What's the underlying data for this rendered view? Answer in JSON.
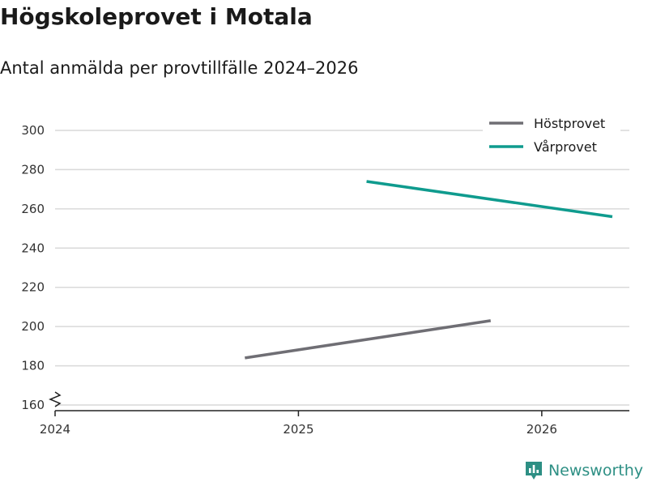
{
  "colors": {
    "hostprovet": "#6f6e74",
    "varprovet": "#0f9b8e",
    "grid": "#d9d9d9",
    "axis": "#222222",
    "brand": "#2d8f84"
  },
  "brand": {
    "name": "Newsworthy",
    "icon": "bar-chart-badge-icon"
  },
  "chart_data": {
    "type": "line",
    "title": "Högskoleprovet i Motala",
    "subtitle": "Antal anmälda per provtillfälle 2024–2026",
    "xlabel": "",
    "ylabel": "",
    "xlim": [
      2024,
      2026.36
    ],
    "ylim": [
      160,
      300
    ],
    "x_ticks": [
      2024,
      2025,
      2026
    ],
    "x_tick_labels": [
      "2024",
      "2025",
      "2026"
    ],
    "y_ticks": [
      160,
      180,
      200,
      220,
      240,
      260,
      280,
      300
    ],
    "y_tick_labels": [
      "160",
      "180",
      "200",
      "220",
      "240",
      "260",
      "280",
      "300"
    ],
    "y_axis_broken": true,
    "grid": true,
    "legend_position": "top-right",
    "series": [
      {
        "key": "hostprovet",
        "name": "Höstprovet",
        "x": [
          2024.78,
          2025.79
        ],
        "values": [
          184,
          203
        ]
      },
      {
        "key": "varprovet",
        "name": "Vårprovet",
        "x": [
          2025.28,
          2026.29
        ],
        "values": [
          274,
          256
        ]
      }
    ]
  }
}
